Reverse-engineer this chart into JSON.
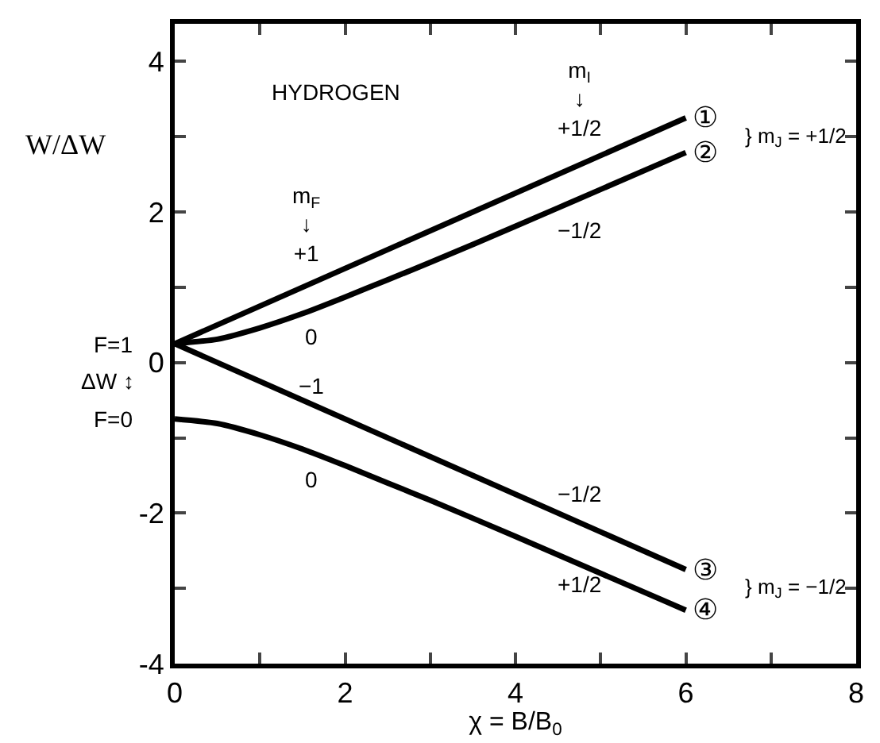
{
  "chart_data": {
    "type": "line",
    "xlabel": "χ = B/B$_{0}$",
    "ylabel": "W/ΔW",
    "xlim": [
      0,
      8
    ],
    "ylim": [
      -4,
      4.5
    ],
    "xticks": [
      0,
      {
        "value": 1,
        "label": null
      },
      2,
      {
        "value": 3,
        "label": null
      },
      4,
      {
        "value": 5,
        "label": null
      },
      6,
      {
        "value": 7,
        "label": null
      },
      8
    ],
    "yticks": [
      -4,
      {
        "value": -3,
        "label": null
      },
      -2,
      {
        "value": -1,
        "label": null
      },
      0,
      {
        "value": 1,
        "label": null
      },
      2,
      {
        "value": 3,
        "label": null
      },
      4
    ],
    "grid": false,
    "legend": false,
    "marker": "none",
    "line_style": "solid",
    "series": [
      {
        "name": "①",
        "color": "#000000",
        "x": [
          0,
          6
        ],
        "values": [
          0.25,
          3.25
        ]
      },
      {
        "name": "②",
        "color": "#000000",
        "x": [
          0,
          0.5,
          1,
          1.5,
          2,
          2.5,
          3,
          4,
          5,
          6
        ],
        "values": [
          0.25,
          0.31,
          0.46,
          0.65,
          0.87,
          1.1,
          1.33,
          1.81,
          2.3,
          2.79
        ]
      },
      {
        "name": "③",
        "color": "#000000",
        "x": [
          0,
          6
        ],
        "values": [
          0.25,
          -2.75
        ]
      },
      {
        "name": "④",
        "color": "#000000",
        "x": [
          0,
          0.5,
          1,
          1.5,
          2,
          2.5,
          3,
          4,
          5,
          6
        ],
        "values": [
          -0.75,
          -0.81,
          -0.96,
          -1.15,
          -1.37,
          -1.6,
          -1.83,
          -2.31,
          -2.8,
          -3.29
        ]
      }
    ],
    "annotations": [
      "HYDROGEN",
      "m$_{I}$\n↓\n+1/2",
      "−1/2",
      "m$_{F}$\n↓\n+1",
      "0",
      "−1",
      "0",
      "−1/2",
      "+1/2",
      "} m$_{J}$ = +1/2",
      "} m$_{J}$ = −1/2",
      "ΔW ↕",
      {
        "text": "F=1",
        "x": 0,
        "y": 0.25
      },
      {
        "text": "F=0",
        "x": 0,
        "y": -0.75
      }
    ]
  }
}
